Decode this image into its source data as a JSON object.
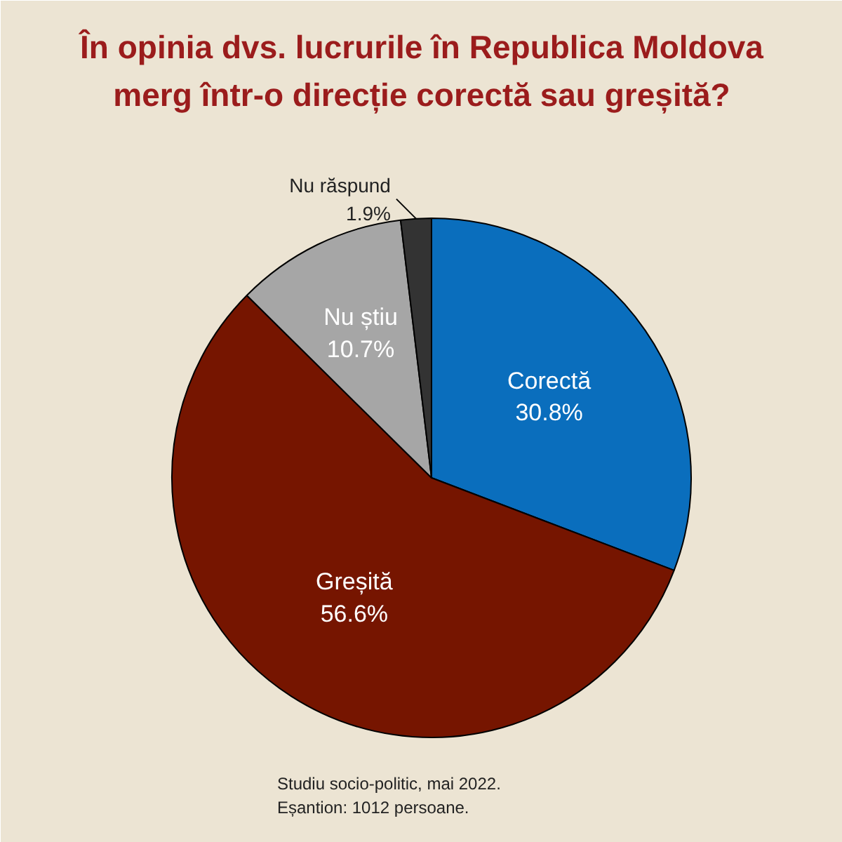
{
  "chart_data": {
    "type": "pie",
    "title": "În opinia dvs. lucrurile în Republica Moldova\nmerg într-o direcție corectă sau greșită?",
    "categories": [
      "Corectă",
      "Greșită",
      "Nu știu",
      "Nu răspund"
    ],
    "values": [
      30.8,
      56.6,
      10.7,
      1.9
    ],
    "colors": [
      "#0a6ebd",
      "#761500",
      "#a6a6a6",
      "#333333"
    ],
    "data_labels": true,
    "value_labels": [
      "30.8%",
      "56.6%",
      "10.7%",
      "1.9%"
    ],
    "annotations": [
      "Studiu socio-politic, mai 2022.",
      "Eșantion: 1012 persoane."
    ]
  }
}
